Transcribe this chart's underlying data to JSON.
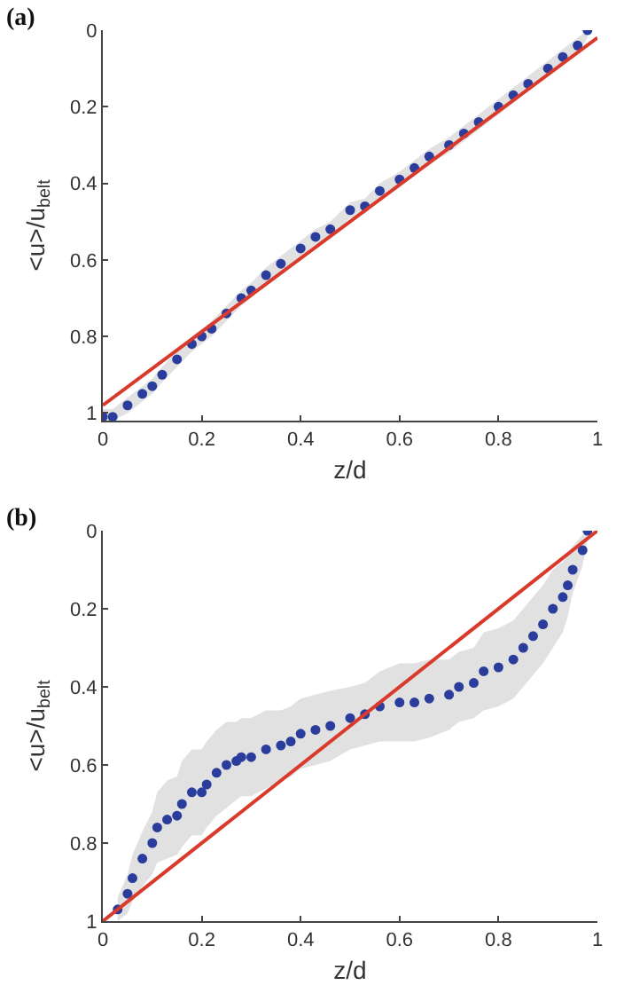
{
  "chart_data": [
    {
      "type": "scatter",
      "title": "(a)",
      "xlabel": "z/d",
      "ylabel": "<u>/u$_{belt}$",
      "xlim": [
        0,
        1
      ],
      "xticks": [
        0,
        0.2,
        0.4,
        0.6,
        0.8,
        1
      ],
      "ylim": [
        1.02,
        0
      ],
      "yticks": [
        0,
        0.2,
        0.4,
        0.6,
        0.8,
        1
      ],
      "grid": false,
      "series": [
        {
          "color": "#2b3d9c",
          "marker": "circle",
          "x": [
            0,
            0.02,
            0.05,
            0.08,
            0.1,
            0.12,
            0.15,
            0.18,
            0.2,
            0.22,
            0.25,
            0.28,
            0.3,
            0.33,
            0.36,
            0.4,
            0.43,
            0.46,
            0.5,
            0.53,
            0.56,
            0.6,
            0.63,
            0.66,
            0.7,
            0.73,
            0.76,
            0.8,
            0.83,
            0.86,
            0.9,
            0.93,
            0.96,
            0.98
          ],
          "values": [
            1.01,
            1.01,
            0.98,
            0.95,
            0.93,
            0.9,
            0.86,
            0.82,
            0.8,
            0.78,
            0.74,
            0.7,
            0.68,
            0.64,
            0.61,
            0.57,
            0.54,
            0.52,
            0.47,
            0.46,
            0.42,
            0.39,
            0.36,
            0.33,
            0.3,
            0.27,
            0.24,
            0.2,
            0.17,
            0.14,
            0.1,
            0.07,
            0.04,
            0.0
          ],
          "lower": [
            0.99,
            0.99,
            0.96,
            0.93,
            0.91,
            0.88,
            0.84,
            0.8,
            0.78,
            0.76,
            0.72,
            0.68,
            0.66,
            0.62,
            0.59,
            0.55,
            0.52,
            0.5,
            0.45,
            0.44,
            0.4,
            0.37,
            0.34,
            0.31,
            0.28,
            0.25,
            0.22,
            0.18,
            0.15,
            0.12,
            0.08,
            0.05,
            0.02,
            0.0
          ],
          "upper": [
            1.02,
            1.02,
            1.0,
            0.97,
            0.95,
            0.92,
            0.88,
            0.84,
            0.82,
            0.8,
            0.76,
            0.72,
            0.7,
            0.66,
            0.63,
            0.59,
            0.56,
            0.54,
            0.49,
            0.48,
            0.44,
            0.41,
            0.38,
            0.35,
            0.32,
            0.29,
            0.26,
            0.22,
            0.19,
            0.16,
            0.12,
            0.09,
            0.06,
            0.02
          ]
        },
        {
          "type": "line",
          "color": "#d93a2b",
          "line_style": "solid",
          "marker": "none",
          "x": [
            0,
            1
          ],
          "values": [
            0.98,
            0.02
          ]
        }
      ]
    },
    {
      "type": "scatter",
      "title": "(b)",
      "xlabel": "z/d",
      "ylabel": "<u>/u$_{belt}$",
      "xlim": [
        0,
        1
      ],
      "xticks": [
        0,
        0.2,
        0.4,
        0.6,
        0.8,
        1
      ],
      "ylim": [
        1,
        0
      ],
      "yticks": [
        0,
        0.2,
        0.4,
        0.6,
        0.8,
        1
      ],
      "grid": false,
      "series": [
        {
          "color": "#2b3d9c",
          "marker": "circle",
          "x": [
            0.03,
            0.05,
            0.06,
            0.08,
            0.1,
            0.11,
            0.13,
            0.15,
            0.16,
            0.18,
            0.2,
            0.21,
            0.23,
            0.25,
            0.27,
            0.28,
            0.3,
            0.33,
            0.36,
            0.38,
            0.4,
            0.43,
            0.46,
            0.5,
            0.53,
            0.56,
            0.6,
            0.63,
            0.66,
            0.7,
            0.72,
            0.75,
            0.77,
            0.8,
            0.83,
            0.85,
            0.87,
            0.89,
            0.91,
            0.93,
            0.94,
            0.95,
            0.97,
            0.98
          ],
          "values": [
            0.97,
            0.93,
            0.89,
            0.84,
            0.8,
            0.76,
            0.74,
            0.73,
            0.7,
            0.67,
            0.67,
            0.65,
            0.62,
            0.6,
            0.59,
            0.58,
            0.58,
            0.56,
            0.55,
            0.54,
            0.52,
            0.51,
            0.5,
            0.48,
            0.47,
            0.45,
            0.44,
            0.44,
            0.43,
            0.42,
            0.4,
            0.39,
            0.36,
            0.35,
            0.33,
            0.3,
            0.27,
            0.24,
            0.2,
            0.17,
            0.14,
            0.1,
            0.05,
            0.0
          ],
          "lower": [
            0.94,
            0.88,
            0.83,
            0.77,
            0.72,
            0.67,
            0.64,
            0.63,
            0.59,
            0.56,
            0.56,
            0.54,
            0.51,
            0.49,
            0.49,
            0.48,
            0.48,
            0.46,
            0.46,
            0.45,
            0.43,
            0.42,
            0.41,
            0.4,
            0.39,
            0.36,
            0.34,
            0.34,
            0.33,
            0.33,
            0.31,
            0.3,
            0.26,
            0.25,
            0.23,
            0.2,
            0.17,
            0.14,
            0.1,
            0.08,
            0.06,
            0.04,
            0.01,
            0.0
          ],
          "upper": [
            1.0,
            0.98,
            0.95,
            0.91,
            0.88,
            0.85,
            0.84,
            0.83,
            0.81,
            0.78,
            0.78,
            0.76,
            0.73,
            0.71,
            0.69,
            0.68,
            0.68,
            0.66,
            0.64,
            0.63,
            0.61,
            0.6,
            0.59,
            0.56,
            0.55,
            0.54,
            0.54,
            0.54,
            0.53,
            0.51,
            0.49,
            0.48,
            0.46,
            0.45,
            0.43,
            0.4,
            0.37,
            0.34,
            0.3,
            0.26,
            0.22,
            0.16,
            0.09,
            0.02
          ]
        },
        {
          "type": "line",
          "color": "#d93a2b",
          "line_style": "solid",
          "marker": "none",
          "x": [
            0,
            1
          ],
          "values": [
            1,
            0
          ]
        }
      ]
    }
  ]
}
